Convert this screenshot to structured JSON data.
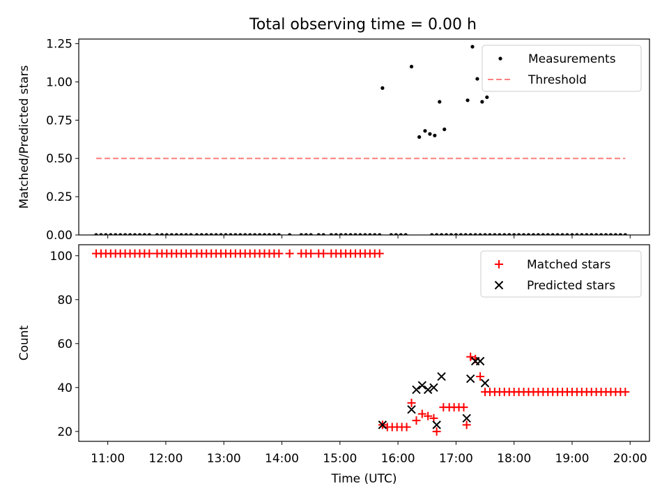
{
  "title": "Total observing time = 0.00 h",
  "colors": {
    "matched": "#ff0000",
    "predicted": "#000000",
    "measurements": "#000000",
    "threshold": "#ff7f7f"
  },
  "chart_data": [
    {
      "type": "scatter",
      "ylabel": "Matched/Predicted stars",
      "ylim": [
        0,
        1.28
      ],
      "xlim": [
        "10:30",
        "20:20"
      ],
      "yticks": [
        0,
        0.25,
        0.5,
        0.75,
        1.0,
        1.25
      ],
      "ytick_labels": [
        "0.00",
        "0.25",
        "0.50",
        "0.75",
        "1.00",
        "1.25"
      ],
      "legend_position": "top-right",
      "series": [
        {
          "name": "Measurements",
          "marker": "dot",
          "points": [
            [
              "10:48",
              0
            ],
            [
              "10:53",
              0
            ],
            [
              "10:58",
              0
            ],
            [
              "11:03",
              0
            ],
            [
              "11:08",
              0
            ],
            [
              "11:13",
              0
            ],
            [
              "11:18",
              0
            ],
            [
              "11:23",
              0
            ],
            [
              "11:28",
              0
            ],
            [
              "11:33",
              0
            ],
            [
              "11:38",
              0
            ],
            [
              "11:43",
              0
            ],
            [
              "11:51",
              0
            ],
            [
              "11:56",
              0
            ],
            [
              "12:01",
              0
            ],
            [
              "12:06",
              0
            ],
            [
              "12:11",
              0
            ],
            [
              "12:16",
              0
            ],
            [
              "12:21",
              0
            ],
            [
              "12:26",
              0
            ],
            [
              "12:32",
              0
            ],
            [
              "12:37",
              0
            ],
            [
              "12:42",
              0
            ],
            [
              "12:47",
              0
            ],
            [
              "12:52",
              0
            ],
            [
              "12:57",
              0
            ],
            [
              "13:02",
              0
            ],
            [
              "13:07",
              0
            ],
            [
              "13:12",
              0
            ],
            [
              "13:17",
              0
            ],
            [
              "13:22",
              0
            ],
            [
              "13:27",
              0
            ],
            [
              "13:32",
              0
            ],
            [
              "13:37",
              0
            ],
            [
              "13:42",
              0
            ],
            [
              "13:47",
              0
            ],
            [
              "13:52",
              0
            ],
            [
              "13:57",
              0
            ],
            [
              "14:08",
              0
            ],
            [
              "14:20",
              0
            ],
            [
              "14:25",
              0
            ],
            [
              "14:30",
              0
            ],
            [
              "14:38",
              0
            ],
            [
              "14:43",
              0
            ],
            [
              "14:51",
              0
            ],
            [
              "14:56",
              0
            ],
            [
              "15:01",
              0
            ],
            [
              "15:06",
              0
            ],
            [
              "15:11",
              0
            ],
            [
              "15:16",
              0
            ],
            [
              "15:21",
              0
            ],
            [
              "15:26",
              0
            ],
            [
              "15:31",
              0
            ],
            [
              "15:36",
              0
            ],
            [
              "15:41",
              0
            ],
            [
              "15:53",
              0
            ],
            [
              "15:58",
              0
            ],
            [
              "16:03",
              0
            ],
            [
              "16:08",
              0
            ],
            [
              "16:35",
              0
            ],
            [
              "16:40",
              0
            ],
            [
              "16:45",
              0
            ],
            [
              "16:50",
              0
            ],
            [
              "16:55",
              0
            ],
            [
              "17:00",
              0
            ],
            [
              "17:05",
              0
            ],
            [
              "17:10",
              0
            ],
            [
              "17:15",
              0
            ],
            [
              "17:20",
              0
            ],
            [
              "17:25",
              0
            ],
            [
              "17:30",
              0
            ],
            [
              "17:35",
              0
            ],
            [
              "17:40",
              0
            ],
            [
              "17:45",
              0
            ],
            [
              "17:50",
              0
            ],
            [
              "17:55",
              0
            ],
            [
              "18:00",
              0
            ],
            [
              "18:05",
              0
            ],
            [
              "18:10",
              0
            ],
            [
              "18:15",
              0
            ],
            [
              "18:20",
              0
            ],
            [
              "18:25",
              0
            ],
            [
              "18:30",
              0
            ],
            [
              "18:35",
              0
            ],
            [
              "18:40",
              0
            ],
            [
              "18:45",
              0
            ],
            [
              "18:50",
              0
            ],
            [
              "18:55",
              0
            ],
            [
              "19:00",
              0
            ],
            [
              "19:05",
              0
            ],
            [
              "19:10",
              0
            ],
            [
              "19:15",
              0
            ],
            [
              "19:20",
              0
            ],
            [
              "19:25",
              0
            ],
            [
              "19:30",
              0
            ],
            [
              "19:35",
              0
            ],
            [
              "19:40",
              0
            ],
            [
              "19:45",
              0
            ],
            [
              "19:50",
              0
            ],
            [
              "19:55",
              0
            ],
            [
              "15:44",
              0.96
            ],
            [
              "16:14",
              1.1
            ],
            [
              "16:22",
              0.64
            ],
            [
              "16:28",
              0.68
            ],
            [
              "16:33",
              0.66
            ],
            [
              "16:38",
              0.65
            ],
            [
              "16:43",
              0.87
            ],
            [
              "16:48",
              0.69
            ],
            [
              "17:12",
              0.88
            ],
            [
              "17:17",
              1.23
            ],
            [
              "17:22",
              1.02
            ],
            [
              "17:27",
              0.87
            ],
            [
              "17:32",
              0.9
            ]
          ]
        },
        {
          "name": "Threshold",
          "style": "dashed",
          "x": [
            "10:48",
            "19:55"
          ],
          "y": [
            0.5,
            0.5
          ]
        }
      ]
    },
    {
      "type": "scatter",
      "xlabel": "Time (UTC)",
      "ylabel": "Count",
      "ylim": [
        15.5,
        105
      ],
      "xlim": [
        "10:30",
        "20:20"
      ],
      "yticks": [
        20,
        40,
        60,
        80,
        100
      ],
      "ytick_labels": [
        "20",
        "40",
        "60",
        "80",
        "100"
      ],
      "xticks": [
        "11:00",
        "12:00",
        "13:00",
        "14:00",
        "15:00",
        "16:00",
        "17:00",
        "18:00",
        "19:00",
        "20:00"
      ],
      "legend_position": "top-right",
      "series": [
        {
          "name": "Matched stars",
          "marker": "plus",
          "points": [
            [
              "10:48",
              101
            ],
            [
              "10:53",
              101
            ],
            [
              "10:58",
              101
            ],
            [
              "11:03",
              101
            ],
            [
              "11:08",
              101
            ],
            [
              "11:13",
              101
            ],
            [
              "11:18",
              101
            ],
            [
              "11:23",
              101
            ],
            [
              "11:28",
              101
            ],
            [
              "11:33",
              101
            ],
            [
              "11:38",
              101
            ],
            [
              "11:43",
              101
            ],
            [
              "11:51",
              101
            ],
            [
              "11:56",
              101
            ],
            [
              "12:01",
              101
            ],
            [
              "12:06",
              101
            ],
            [
              "12:11",
              101
            ],
            [
              "12:16",
              101
            ],
            [
              "12:21",
              101
            ],
            [
              "12:26",
              101
            ],
            [
              "12:32",
              101
            ],
            [
              "12:37",
              101
            ],
            [
              "12:42",
              101
            ],
            [
              "12:47",
              101
            ],
            [
              "12:52",
              101
            ],
            [
              "12:57",
              101
            ],
            [
              "13:02",
              101
            ],
            [
              "13:07",
              101
            ],
            [
              "13:12",
              101
            ],
            [
              "13:17",
              101
            ],
            [
              "13:22",
              101
            ],
            [
              "13:27",
              101
            ],
            [
              "13:32",
              101
            ],
            [
              "13:37",
              101
            ],
            [
              "13:42",
              101
            ],
            [
              "13:47",
              101
            ],
            [
              "13:52",
              101
            ],
            [
              "13:57",
              101
            ],
            [
              "14:08",
              101
            ],
            [
              "14:20",
              101
            ],
            [
              "14:25",
              101
            ],
            [
              "14:30",
              101
            ],
            [
              "14:38",
              101
            ],
            [
              "14:43",
              101
            ],
            [
              "14:51",
              101
            ],
            [
              "14:56",
              101
            ],
            [
              "15:01",
              101
            ],
            [
              "15:06",
              101
            ],
            [
              "15:11",
              101
            ],
            [
              "15:16",
              101
            ],
            [
              "15:21",
              101
            ],
            [
              "15:26",
              101
            ],
            [
              "15:31",
              101
            ],
            [
              "15:36",
              101
            ],
            [
              "15:41",
              101
            ],
            [
              "15:44",
              23
            ],
            [
              "15:49",
              22
            ],
            [
              "15:54",
              22
            ],
            [
              "15:59",
              22
            ],
            [
              "16:04",
              22
            ],
            [
              "16:09",
              22
            ],
            [
              "16:14",
              33
            ],
            [
              "16:19",
              25
            ],
            [
              "16:25",
              28
            ],
            [
              "16:31",
              27
            ],
            [
              "16:37",
              26
            ],
            [
              "16:40",
              20
            ],
            [
              "16:47",
              31
            ],
            [
              "16:53",
              31
            ],
            [
              "16:58",
              31
            ],
            [
              "17:03",
              31
            ],
            [
              "17:08",
              31
            ],
            [
              "17:11",
              23
            ],
            [
              "17:15",
              54
            ],
            [
              "17:20",
              53
            ],
            [
              "17:25",
              45
            ],
            [
              "17:30",
              38
            ],
            [
              "17:35",
              38
            ],
            [
              "17:40",
              38
            ],
            [
              "17:45",
              38
            ],
            [
              "17:50",
              38
            ],
            [
              "17:55",
              38
            ],
            [
              "18:00",
              38
            ],
            [
              "18:05",
              38
            ],
            [
              "18:10",
              38
            ],
            [
              "18:15",
              38
            ],
            [
              "18:20",
              38
            ],
            [
              "18:25",
              38
            ],
            [
              "18:30",
              38
            ],
            [
              "18:35",
              38
            ],
            [
              "18:40",
              38
            ],
            [
              "18:45",
              38
            ],
            [
              "18:50",
              38
            ],
            [
              "18:55",
              38
            ],
            [
              "19:00",
              38
            ],
            [
              "19:05",
              38
            ],
            [
              "19:10",
              38
            ],
            [
              "19:15",
              38
            ],
            [
              "19:20",
              38
            ],
            [
              "19:25",
              38
            ],
            [
              "19:30",
              38
            ],
            [
              "19:35",
              38
            ],
            [
              "19:40",
              38
            ],
            [
              "19:45",
              38
            ],
            [
              "19:50",
              38
            ],
            [
              "19:55",
              38
            ]
          ]
        },
        {
          "name": "Predicted stars",
          "marker": "x",
          "points": [
            [
              "15:44",
              23
            ],
            [
              "16:14",
              30
            ],
            [
              "16:19",
              39
            ],
            [
              "16:25",
              41
            ],
            [
              "16:31",
              39
            ],
            [
              "16:37",
              40
            ],
            [
              "16:40",
              23
            ],
            [
              "16:45",
              45
            ],
            [
              "17:11",
              26
            ],
            [
              "17:15",
              44
            ],
            [
              "17:20",
              52
            ],
            [
              "17:25",
              52
            ],
            [
              "17:30",
              42
            ]
          ]
        }
      ]
    }
  ]
}
